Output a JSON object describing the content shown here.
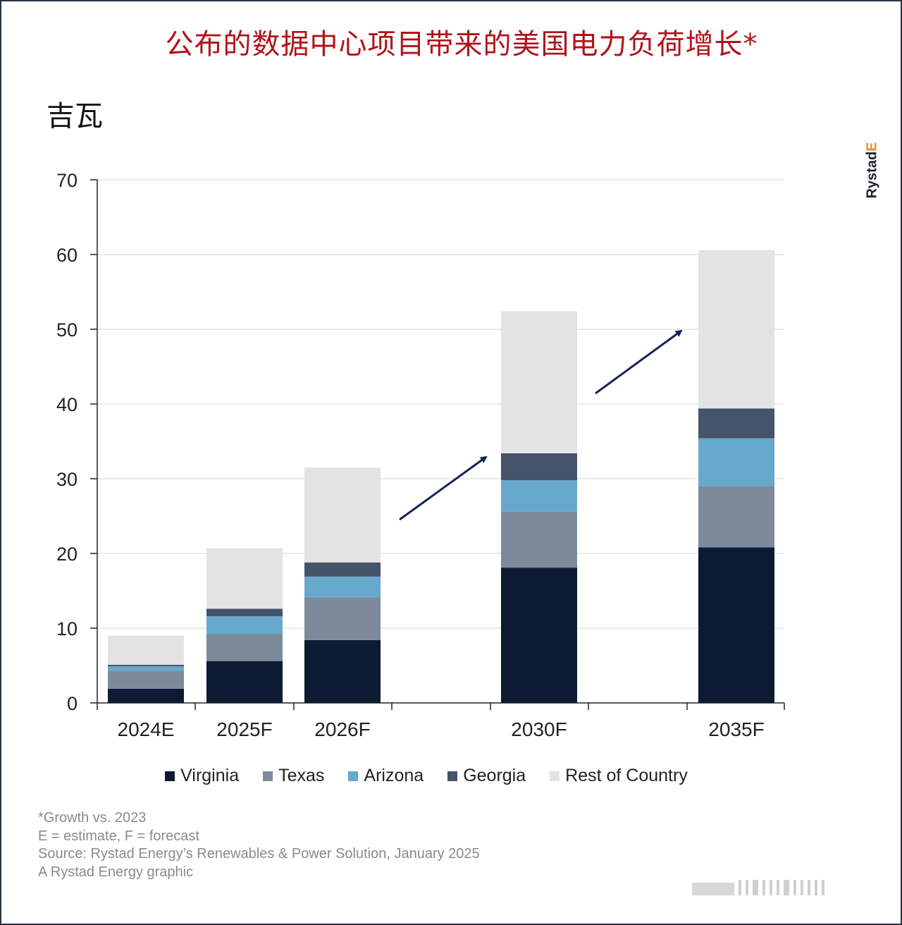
{
  "title": "公布的数据中心项目带来的美国电力负荷增长*",
  "unit_label": "吉瓦",
  "brand": {
    "name": "Rystad",
    "suffix": "E"
  },
  "notes": [
    "*Growth vs. 2023",
    "E = estimate, F = forecast",
    "Source: Rystad Energy’s Renewables & Power Solution, January 2025",
    "A Rystad Energy graphic"
  ],
  "legend": [
    {
      "label": "Virginia",
      "color": "#0d1a33"
    },
    {
      "label": "Texas",
      "color": "#7d8a9b"
    },
    {
      "label": "Arizona",
      "color": "#67a9cc"
    },
    {
      "label": "Georgia",
      "color": "#45536b"
    },
    {
      "label": "Rest of Country",
      "color": "#e3e3e3"
    }
  ],
  "chart_data": {
    "type": "bar",
    "stacked": true,
    "title": "公布的数据中心项目带来的美国电力负荷增长*",
    "ylabel": "吉瓦",
    "xlabel": "",
    "ylim": [
      0,
      70
    ],
    "yticks": [
      0,
      10,
      20,
      30,
      40,
      50,
      60,
      70
    ],
    "grid": true,
    "legend_position": "bottom",
    "categories": [
      "2024E",
      "2025F",
      "2026F",
      "2030F",
      "2035F"
    ],
    "series": [
      {
        "name": "Virginia",
        "color": "#0d1a33",
        "values": [
          1.9,
          5.6,
          8.4,
          18.1,
          20.8
        ]
      },
      {
        "name": "Texas",
        "color": "#7d8a9b",
        "values": [
          2.4,
          3.6,
          5.7,
          7.5,
          8.2
        ]
      },
      {
        "name": "Arizona",
        "color": "#67a9cc",
        "values": [
          0.6,
          2.4,
          2.8,
          4.2,
          6.4
        ]
      },
      {
        "name": "Georgia",
        "color": "#45536b",
        "values": [
          0.2,
          1.0,
          1.9,
          3.6,
          4.0
        ]
      },
      {
        "name": "Rest of Country",
        "color": "#e3e3e3",
        "values": [
          3.9,
          8.1,
          12.7,
          19.0,
          21.2
        ]
      }
    ],
    "annotations": [
      {
        "type": "arrow",
        "from_category_gap": "2026F-2030F"
      },
      {
        "type": "arrow",
        "from_category_gap": "2030F-2035F"
      }
    ]
  }
}
